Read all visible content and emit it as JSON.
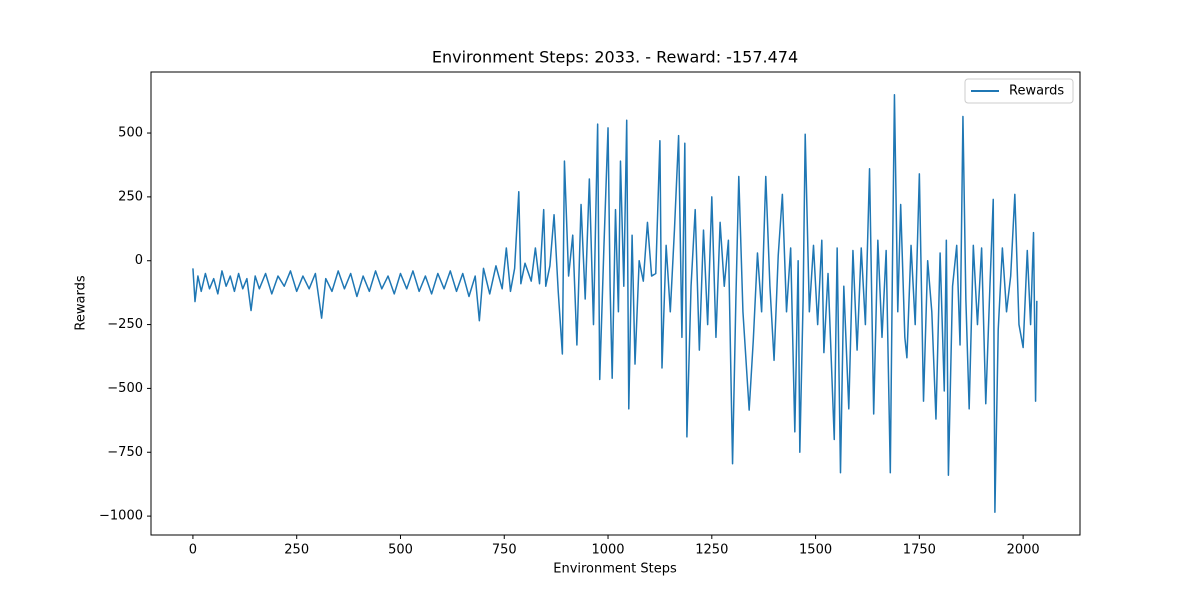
{
  "chart_data": {
    "type": "line",
    "title": "Environment Steps: 2033. - Reward: -157.474",
    "x_label": "Environment Steps",
    "y_label": "Rewards",
    "legend": "upper right",
    "grid": false,
    "xlim": [
      -101,
      2137
    ],
    "ylim": [
      -1074,
      739
    ],
    "xticks": [
      0,
      250,
      500,
      750,
      1000,
      1250,
      1500,
      1750,
      2000
    ],
    "yticks": [
      {
        "value": -1000,
        "label": "−1000"
      },
      {
        "value": -750,
        "label": "−750"
      },
      {
        "value": -500,
        "label": "−500"
      },
      {
        "value": -250,
        "label": "−250"
      },
      0,
      250,
      500
    ],
    "x": [
      0,
      5,
      12,
      20,
      30,
      40,
      50,
      60,
      70,
      80,
      90,
      100,
      110,
      120,
      130,
      140,
      150,
      160,
      175,
      190,
      205,
      220,
      235,
      250,
      265,
      280,
      295,
      310,
      320,
      335,
      350,
      365,
      380,
      395,
      410,
      425,
      440,
      455,
      470,
      485,
      500,
      515,
      530,
      545,
      560,
      575,
      590,
      605,
      620,
      635,
      650,
      665,
      680,
      690,
      700,
      715,
      730,
      745,
      755,
      765,
      775,
      785,
      790,
      800,
      815,
      825,
      835,
      845,
      850,
      860,
      870,
      880,
      890,
      895,
      905,
      915,
      925,
      935,
      945,
      955,
      965,
      975,
      980,
      990,
      1000,
      1005,
      1010,
      1018,
      1025,
      1030,
      1038,
      1045,
      1050,
      1058,
      1065,
      1075,
      1085,
      1095,
      1105,
      1115,
      1125,
      1130,
      1140,
      1150,
      1160,
      1170,
      1178,
      1185,
      1190,
      1200,
      1210,
      1220,
      1230,
      1240,
      1250,
      1260,
      1270,
      1280,
      1290,
      1300,
      1308,
      1315,
      1325,
      1340,
      1350,
      1360,
      1370,
      1380,
      1390,
      1400,
      1410,
      1420,
      1430,
      1440,
      1450,
      1458,
      1462,
      1470,
      1475,
      1485,
      1495,
      1505,
      1515,
      1520,
      1530,
      1545,
      1552,
      1560,
      1568,
      1580,
      1590,
      1600,
      1610,
      1620,
      1630,
      1640,
      1650,
      1660,
      1670,
      1680,
      1685,
      1690,
      1698,
      1705,
      1715,
      1720,
      1730,
      1740,
      1750,
      1760,
      1770,
      1780,
      1790,
      1800,
      1810,
      1815,
      1820,
      1830,
      1840,
      1848,
      1855,
      1862,
      1870,
      1880,
      1890,
      1900,
      1910,
      1920,
      1928,
      1932,
      1940,
      1950,
      1960,
      1970,
      1980,
      1990,
      2000,
      2010,
      2018,
      2025,
      2030,
      2033
    ],
    "series": [
      {
        "name": "Rewards",
        "color": "#1f77b4",
        "values": [
          -30,
          -160,
          -60,
          -120,
          -50,
          -110,
          -70,
          -130,
          -40,
          -100,
          -60,
          -120,
          -50,
          -110,
          -70,
          -195,
          -60,
          -110,
          -50,
          -130,
          -60,
          -100,
          -40,
          -120,
          -60,
          -110,
          -50,
          -225,
          -70,
          -120,
          -40,
          -110,
          -50,
          -140,
          -60,
          -120,
          -40,
          -110,
          -60,
          -130,
          -50,
          -110,
          -40,
          -120,
          -60,
          -130,
          -50,
          -110,
          -40,
          -120,
          -50,
          -140,
          -60,
          -235,
          -30,
          -130,
          -20,
          -110,
          50,
          -120,
          -30,
          270,
          -90,
          -10,
          -80,
          50,
          -90,
          200,
          -100,
          -20,
          180,
          -120,
          -365,
          390,
          -60,
          100,
          -330,
          220,
          -150,
          320,
          -250,
          535,
          -465,
          50,
          520,
          -100,
          -460,
          200,
          -200,
          390,
          -100,
          550,
          -580,
          100,
          -405,
          0,
          -80,
          150,
          -60,
          -50,
          470,
          -420,
          60,
          -200,
          120,
          490,
          -300,
          460,
          -690,
          -100,
          200,
          -350,
          120,
          -250,
          250,
          -300,
          150,
          -100,
          80,
          -795,
          -150,
          330,
          -200,
          -585,
          -310,
          30,
          -200,
          330,
          -100,
          -390,
          20,
          260,
          -200,
          50,
          -670,
          0,
          -750,
          -150,
          495,
          -200,
          60,
          -250,
          80,
          -360,
          -50,
          -700,
          50,
          -830,
          -100,
          -580,
          40,
          -350,
          50,
          -250,
          360,
          -600,
          80,
          -300,
          40,
          -830,
          -50,
          650,
          -200,
          220,
          -300,
          -380,
          60,
          -250,
          340,
          -550,
          0,
          -200,
          -620,
          30,
          -510,
          80,
          -840,
          -100,
          60,
          -330,
          565,
          -150,
          -580,
          60,
          -250,
          50,
          -560,
          -100,
          240,
          -985,
          -270,
          50,
          -200,
          -60,
          260,
          -250,
          -340,
          40,
          -250,
          110,
          -550,
          -157
        ]
      }
    ]
  }
}
